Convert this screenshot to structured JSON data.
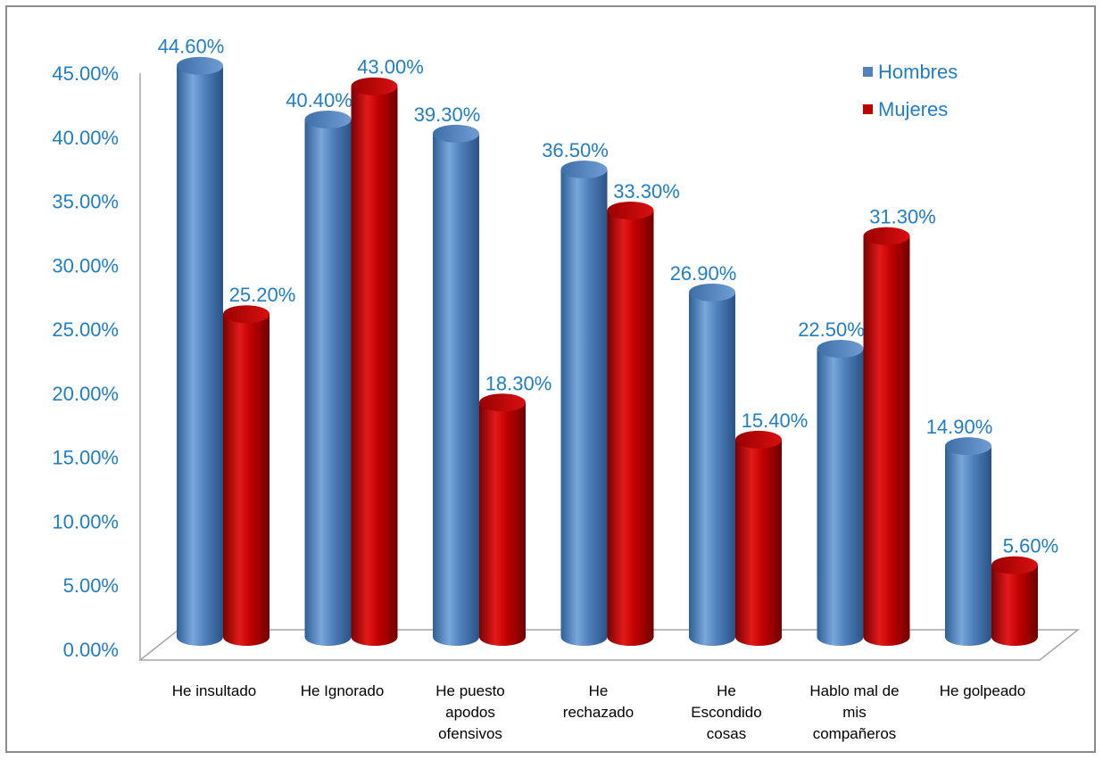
{
  "chart_data": {
    "type": "bar",
    "categories": [
      [
        "He insultado"
      ],
      [
        "He Ignorado"
      ],
      [
        "He puesto",
        "apodos",
        "ofensivos"
      ],
      [
        "He",
        "rechazado"
      ],
      [
        "He",
        "Escondido",
        "cosas"
      ],
      [
        "Hablo mal de",
        "mis",
        "compañeros"
      ],
      [
        "He golpeado"
      ]
    ],
    "series": [
      {
        "name": "Hombres",
        "color": "#4f81bd",
        "values": [
          44.6,
          40.4,
          39.3,
          36.5,
          26.9,
          22.5,
          14.9
        ],
        "labels": [
          "44.60%",
          "40.40%",
          "39.30%",
          "36.50%",
          "26.90%",
          "22.50%",
          "14.90%"
        ]
      },
      {
        "name": "Mujeres",
        "color": "#c00000",
        "values": [
          25.2,
          43.0,
          18.3,
          33.3,
          15.4,
          31.3,
          5.6
        ],
        "labels": [
          "25.20%",
          "43.00%",
          "18.30%",
          "33.30%",
          "15.40%",
          "31.30%",
          "5.60%"
        ]
      }
    ],
    "y_ticks": [
      "0.00%",
      "5.00%",
      "10.00%",
      "15.00%",
      "20.00%",
      "25.00%",
      "30.00%",
      "35.00%",
      "40.00%",
      "45.00%"
    ],
    "ylim": [
      0,
      45
    ],
    "legend_position": "top-right",
    "grid": false
  }
}
